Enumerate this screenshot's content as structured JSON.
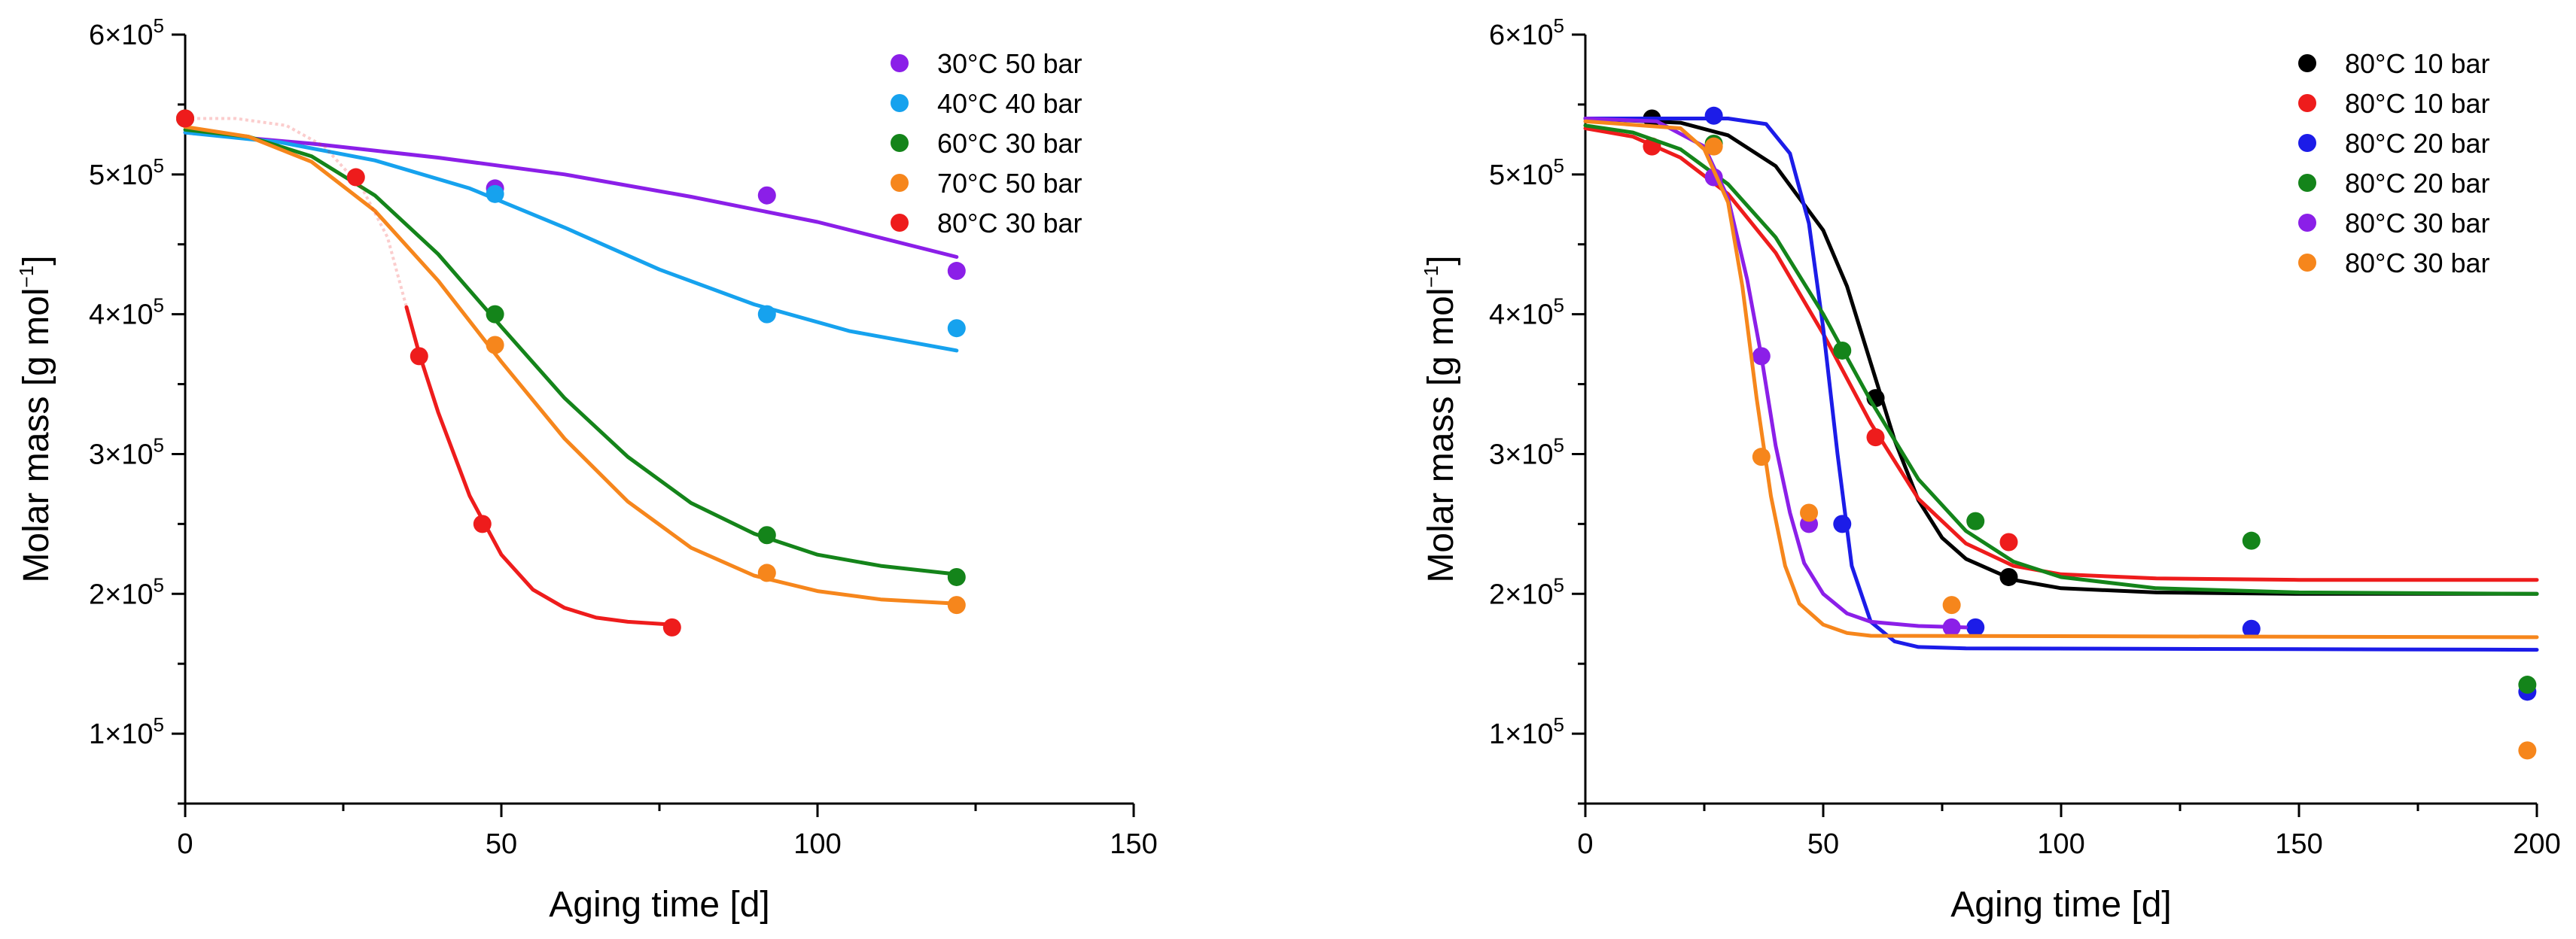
{
  "chart_data": [
    {
      "type": "scatter",
      "xlabel": "Aging time [d]",
      "ylabel": "Molar mass [g mol",
      "ylabel_sup": "−1",
      "ylabel_end": "]",
      "xlim": [
        0,
        150
      ],
      "ylim": [
        50000,
        600000
      ],
      "y_scale_factor": 100000,
      "x_ticks": [
        0,
        50,
        100,
        150
      ],
      "x_tick_labels": [
        "0",
        "50",
        "100",
        "150"
      ],
      "y_ticks": [
        100000,
        200000,
        300000,
        400000,
        500000,
        600000
      ],
      "y_tick_labels": [
        {
          "base": "1×10",
          "exp": "5"
        },
        {
          "base": "2×10",
          "exp": "5"
        },
        {
          "base": "3×10",
          "exp": "5"
        },
        {
          "base": "4×10",
          "exp": "5"
        },
        {
          "base": "5×10",
          "exp": "5"
        },
        {
          "base": "6×10",
          "exp": "5"
        }
      ],
      "legend_position": "top-right",
      "grid": false,
      "series": [
        {
          "name": "30°C 50 bar",
          "color": "#8b1fe8",
          "points": [
            [
              0,
              540000
            ],
            [
              49,
              490000
            ],
            [
              92,
              485000
            ],
            [
              122,
              431000
            ]
          ],
          "fit": [
            [
              0,
              530000
            ],
            [
              20,
              522000
            ],
            [
              40,
              512000
            ],
            [
              60,
              500000
            ],
            [
              80,
              484000
            ],
            [
              100,
              466000
            ],
            [
              122,
              441000
            ]
          ]
        },
        {
          "name": "40°C 40 bar",
          "color": "#16a2ee",
          "points": [
            [
              0,
              540000
            ],
            [
              49,
              486000
            ],
            [
              92,
              400000
            ],
            [
              122,
              390000
            ]
          ],
          "fit": [
            [
              0,
              530000
            ],
            [
              15,
              523000
            ],
            [
              30,
              510000
            ],
            [
              45,
              490000
            ],
            [
              60,
              462000
            ],
            [
              75,
              432000
            ],
            [
              90,
              407000
            ],
            [
              105,
              388000
            ],
            [
              122,
              374000
            ]
          ]
        },
        {
          "name": "60°C 30 bar",
          "color": "#14841a",
          "points": [
            [
              0,
              540000
            ],
            [
              49,
              400000
            ],
            [
              92,
              242000
            ],
            [
              122,
              212000
            ]
          ],
          "fit": [
            [
              0,
              532000
            ],
            [
              10,
              527000
            ],
            [
              20,
              513000
            ],
            [
              30,
              485000
            ],
            [
              40,
              443000
            ],
            [
              50,
              391000
            ],
            [
              60,
              340000
            ],
            [
              70,
              298000
            ],
            [
              80,
              265000
            ],
            [
              90,
              243000
            ],
            [
              100,
              228000
            ],
            [
              110,
              220000
            ],
            [
              122,
              214000
            ]
          ]
        },
        {
          "name": "70°C 50 bar",
          "color": "#f6861c",
          "points": [
            [
              0,
              540000
            ],
            [
              49,
              378000
            ],
            [
              92,
              215000
            ],
            [
              122,
              192000
            ]
          ],
          "fit": [
            [
              0,
              534000
            ],
            [
              10,
              527000
            ],
            [
              20,
              509000
            ],
            [
              30,
              474000
            ],
            [
              40,
              424000
            ],
            [
              50,
              366000
            ],
            [
              60,
              311000
            ],
            [
              70,
              266000
            ],
            [
              80,
              233000
            ],
            [
              90,
              213000
            ],
            [
              100,
              202000
            ],
            [
              110,
              196000
            ],
            [
              122,
              193000
            ]
          ]
        },
        {
          "name": "80°C 30 bar",
          "color": "#ee1c1c",
          "points": [
            [
              0,
              540000
            ],
            [
              27,
              498000
            ],
            [
              37,
              370000
            ],
            [
              47,
              250000
            ],
            [
              77,
              176000
            ]
          ],
          "fit": [
            [
              35,
              405000
            ],
            [
              37,
              372000
            ],
            [
              40,
              330000
            ],
            [
              45,
              270000
            ],
            [
              50,
              228000
            ],
            [
              55,
              203000
            ],
            [
              60,
              190000
            ],
            [
              65,
              183000
            ],
            [
              70,
              180000
            ],
            [
              77,
              178000
            ]
          ],
          "fit_faded": [
            [
              0,
              540000
            ],
            [
              8,
              540000
            ],
            [
              16,
              535000
            ],
            [
              22,
              520000
            ],
            [
              28,
              490000
            ],
            [
              32,
              455000
            ],
            [
              35,
              405000
            ]
          ]
        }
      ]
    },
    {
      "type": "scatter",
      "xlabel": "Aging time [d]",
      "ylabel": "Molar mass [g mol",
      "ylabel_sup": "−1",
      "ylabel_end": "]",
      "xlim": [
        0,
        200
      ],
      "ylim": [
        50000,
        600000
      ],
      "y_scale_factor": 100000,
      "x_ticks": [
        0,
        50,
        100,
        150,
        200
      ],
      "x_tick_labels": [
        "0",
        "50",
        "100",
        "150",
        "200"
      ],
      "y_ticks": [
        100000,
        200000,
        300000,
        400000,
        500000,
        600000
      ],
      "y_tick_labels": [
        {
          "base": "1×10",
          "exp": "5"
        },
        {
          "base": "2×10",
          "exp": "5"
        },
        {
          "base": "3×10",
          "exp": "5"
        },
        {
          "base": "4×10",
          "exp": "5"
        },
        {
          "base": "5×10",
          "exp": "5"
        },
        {
          "base": "6×10",
          "exp": "5"
        }
      ],
      "legend_position": "top-right",
      "grid": false,
      "series": [
        {
          "name": "80°C 10 bar",
          "color": "#000000",
          "points": [
            [
              14,
              540000
            ],
            [
              61,
              340000
            ],
            [
              89,
              212000
            ]
          ],
          "fit": [
            [
              0,
              540000
            ],
            [
              20,
              537000
            ],
            [
              30,
              528000
            ],
            [
              40,
              506000
            ],
            [
              50,
              460000
            ],
            [
              55,
              420000
            ],
            [
              60,
              365000
            ],
            [
              65,
              310000
            ],
            [
              70,
              267000
            ],
            [
              75,
              240000
            ],
            [
              80,
              225000
            ],
            [
              90,
              210000
            ],
            [
              100,
              204000
            ],
            [
              120,
              201000
            ],
            [
              150,
              200000
            ],
            [
              200,
              200000
            ]
          ]
        },
        {
          "name": "80°C 10 bar",
          "color": "#ee1c1c",
          "points": [
            [
              14,
              520000
            ],
            [
              61,
              312000
            ],
            [
              89,
              237000
            ]
          ],
          "fit": [
            [
              0,
              533000
            ],
            [
              10,
              527000
            ],
            [
              20,
              512000
            ],
            [
              30,
              486000
            ],
            [
              40,
              444000
            ],
            [
              50,
              386000
            ],
            [
              60,
              322000
            ],
            [
              70,
              268000
            ],
            [
              80,
              236000
            ],
            [
              90,
              220000
            ],
            [
              100,
              214000
            ],
            [
              120,
              211000
            ],
            [
              150,
              210000
            ],
            [
              200,
              210000
            ]
          ]
        },
        {
          "name": "80°C 20 bar",
          "color": "#1c1ce8",
          "points": [
            [
              27,
              542000
            ],
            [
              54,
              250000
            ],
            [
              82,
              176000
            ],
            [
              140,
              175000
            ],
            [
              198,
              130000
            ]
          ],
          "fit": [
            [
              0,
              540000
            ],
            [
              30,
              540000
            ],
            [
              38,
              536000
            ],
            [
              43,
              515000
            ],
            [
              47,
              465000
            ],
            [
              50,
              390000
            ],
            [
              53,
              300000
            ],
            [
              56,
              220000
            ],
            [
              60,
              180000
            ],
            [
              65,
              166000
            ],
            [
              70,
              162000
            ],
            [
              80,
              161000
            ],
            [
              200,
              160000
            ]
          ]
        },
        {
          "name": "80°C 20 bar",
          "color": "#14841a",
          "points": [
            [
              27,
              522000
            ],
            [
              54,
              374000
            ],
            [
              82,
              252000
            ],
            [
              140,
              238000
            ],
            [
              198,
              135000
            ]
          ],
          "fit": [
            [
              0,
              535000
            ],
            [
              10,
              530000
            ],
            [
              20,
              518000
            ],
            [
              30,
              493000
            ],
            [
              40,
              455000
            ],
            [
              50,
              400000
            ],
            [
              60,
              338000
            ],
            [
              70,
              282000
            ],
            [
              80,
              245000
            ],
            [
              90,
              223000
            ],
            [
              100,
              212000
            ],
            [
              120,
              204000
            ],
            [
              150,
              201000
            ],
            [
              200,
              200000
            ]
          ]
        },
        {
          "name": "80°C 30 bar",
          "color": "#8b1fe8",
          "points": [
            [
              27,
              498000
            ],
            [
              37,
              370000
            ],
            [
              47,
              250000
            ],
            [
              77,
              176000
            ]
          ],
          "fit": [
            [
              0,
              540000
            ],
            [
              15,
              538000
            ],
            [
              25,
              520000
            ],
            [
              30,
              483000
            ],
            [
              34,
              425000
            ],
            [
              37,
              370000
            ],
            [
              40,
              306000
            ],
            [
              43,
              258000
            ],
            [
              46,
              222000
            ],
            [
              50,
              200000
            ],
            [
              55,
              186000
            ],
            [
              60,
              180000
            ],
            [
              70,
              177000
            ],
            [
              80,
              176000
            ]
          ]
        },
        {
          "name": "80°C 30 bar",
          "color": "#f6861c",
          "points": [
            [
              27,
              520000
            ],
            [
              37,
              298000
            ],
            [
              47,
              258000
            ],
            [
              77,
              192000
            ],
            [
              198,
              88000
            ]
          ],
          "fit": [
            [
              0,
              538000
            ],
            [
              20,
              533000
            ],
            [
              25,
              518000
            ],
            [
              30,
              480000
            ],
            [
              33,
              420000
            ],
            [
              36,
              340000
            ],
            [
              39,
              270000
            ],
            [
              42,
              220000
            ],
            [
              45,
              193000
            ],
            [
              50,
              178000
            ],
            [
              55,
              172000
            ],
            [
              60,
              170000
            ],
            [
              200,
              169000
            ]
          ]
        }
      ]
    }
  ]
}
